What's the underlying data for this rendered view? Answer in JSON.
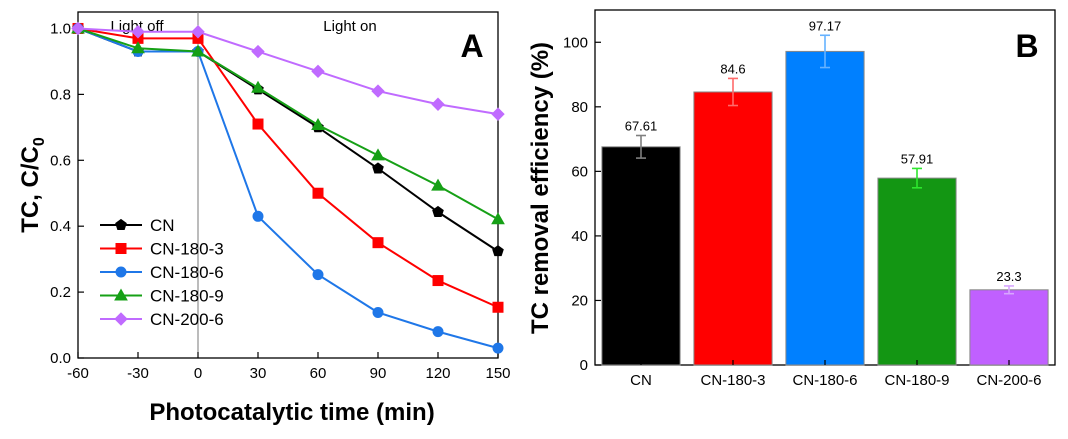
{
  "chart_data": [
    {
      "type": "line",
      "panel": "A",
      "xlabel": "Photocatalytic time (min)",
      "ylabel_main": "TC, C/C",
      "ylabel_sub": "0",
      "x": [
        -60,
        -30,
        0,
        30,
        60,
        90,
        120,
        150
      ],
      "xticks": [
        "-60",
        "-30",
        "0",
        "30",
        "60",
        "90",
        "120",
        "150"
      ],
      "yticks": [
        "0.0",
        "0.2",
        "0.4",
        "0.6",
        "0.8",
        "1.0"
      ],
      "xlim": [
        -60,
        150
      ],
      "ylim": [
        0,
        1.05
      ],
      "annotations": {
        "left": "Light off",
        "right": "Light on"
      },
      "divider_x": 0,
      "legend_position": "bottom-left",
      "series": [
        {
          "name": "CN",
          "color": "#000000",
          "marker": "pentagon",
          "values": [
            1.0,
            0.93,
            0.93,
            0.815,
            0.7,
            0.575,
            0.443,
            0.324
          ]
        },
        {
          "name": "CN-180-3",
          "color": "#ff0000",
          "marker": "square",
          "values": [
            1.0,
            0.97,
            0.97,
            0.71,
            0.5,
            0.35,
            0.235,
            0.154
          ]
        },
        {
          "name": "CN-180-6",
          "color": "#1f77e8",
          "marker": "circle",
          "values": [
            1.0,
            0.93,
            0.93,
            0.43,
            0.253,
            0.138,
            0.08,
            0.03
          ]
        },
        {
          "name": "CN-180-9",
          "color": "#16a016",
          "marker": "triangle",
          "values": [
            1.0,
            0.94,
            0.93,
            0.82,
            0.707,
            0.615,
            0.523,
            0.421
          ]
        },
        {
          "name": "CN-200-6",
          "color": "#c06bff",
          "marker": "diamond",
          "values": [
            1.0,
            0.99,
            0.99,
            0.93,
            0.87,
            0.81,
            0.77,
            0.74
          ]
        }
      ]
    },
    {
      "type": "bar",
      "panel": "B",
      "ylabel": "TC removal efficiency (%)",
      "categories": [
        "CN",
        "CN-180-3",
        "CN-180-6",
        "CN-180-9",
        "CN-200-6"
      ],
      "values": [
        67.61,
        84.6,
        97.17,
        57.91,
        23.3
      ],
      "labels": [
        "67.61",
        "84.6",
        "97.17",
        "57.91",
        "23.3"
      ],
      "errors": [
        3.5,
        4.2,
        5.0,
        3.0,
        1.2
      ],
      "colors": [
        "#000000",
        "#ff0000",
        "#0080ff",
        "#139613",
        "#c060ff"
      ],
      "error_colors": [
        "#7f7f7f",
        "#ff6a6a",
        "#66b2ff",
        "#2ee62e",
        "#d8a6ff"
      ],
      "yticks": [
        "0",
        "20",
        "40",
        "60",
        "80",
        "100"
      ],
      "ylim": [
        0,
        110
      ]
    }
  ]
}
